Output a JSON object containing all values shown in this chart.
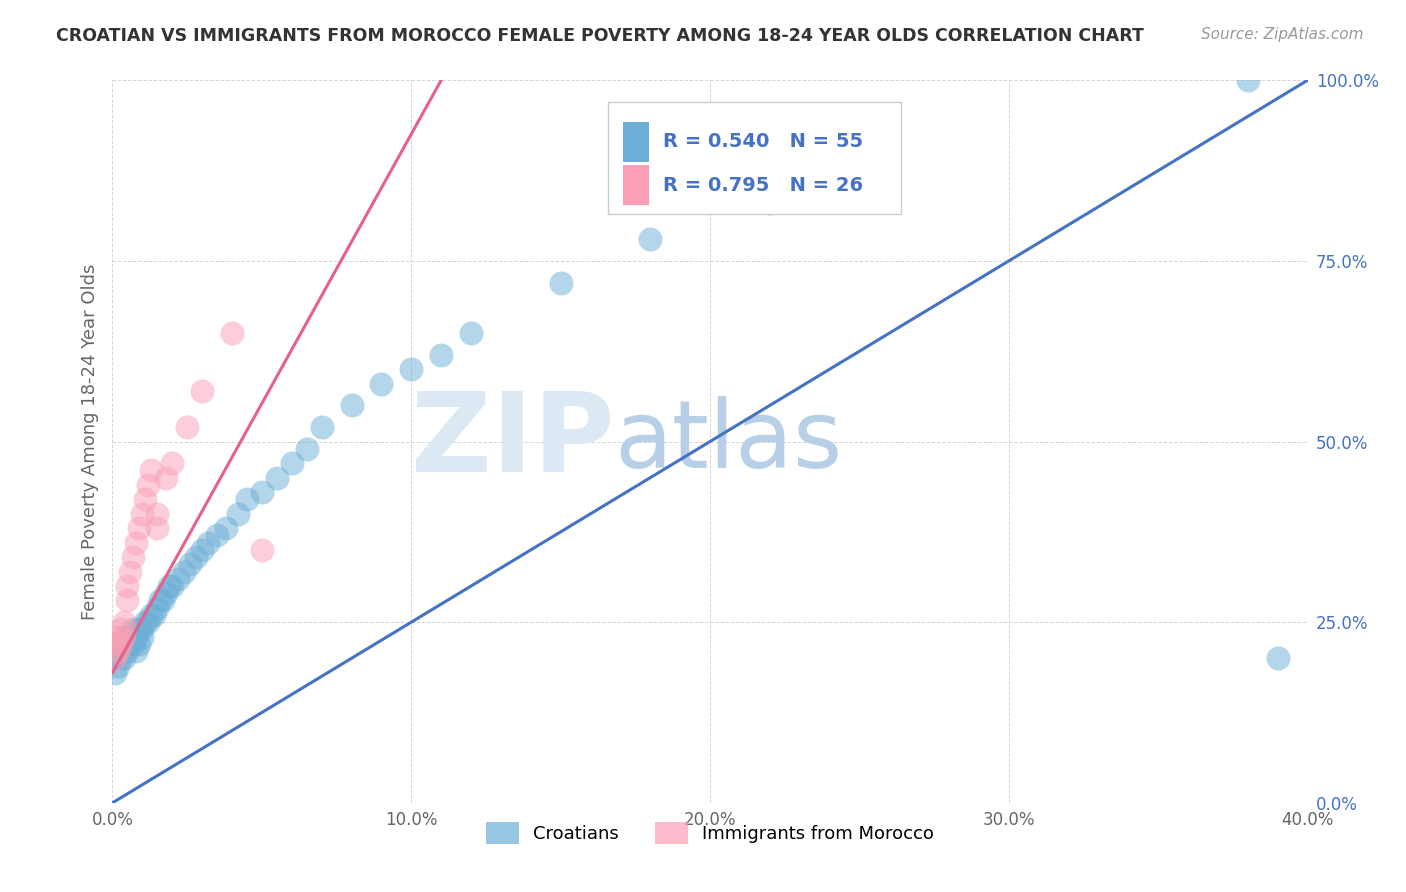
{
  "title": "CROATIAN VS IMMIGRANTS FROM MOROCCO FEMALE POVERTY AMONG 18-24 YEAR OLDS CORRELATION CHART",
  "source": "Source: ZipAtlas.com",
  "ylabel": "Female Poverty Among 18-24 Year Olds",
  "xlim": [
    0.0,
    0.4
  ],
  "ylim": [
    0.0,
    1.0
  ],
  "xticks": [
    0.0,
    0.1,
    0.2,
    0.3,
    0.4
  ],
  "yticks": [
    0.0,
    0.25,
    0.5,
    0.75,
    1.0
  ],
  "xticklabels": [
    "0.0%",
    "10.0%",
    "20.0%",
    "30.0%",
    "40.0%"
  ],
  "yticklabels": [
    "0.0%",
    "25.0%",
    "50.0%",
    "75.0%",
    "100.0%"
  ],
  "croatians_color": "#6baed6",
  "morocco_color": "#fa9fb5",
  "line_blue": "#4472c4",
  "line_pink": "#e8608a",
  "tick_color": "#4472c4",
  "watermark_zip_color": "#dce8f4",
  "watermark_atlas_color": "#b8cfe8",
  "legend_text_color": "#4472c4",
  "legend_r1": "R = 0.540",
  "legend_n1": "N = 55",
  "legend_r2": "R = 0.795",
  "legend_n2": "N = 26",
  "legend_label1": "Croatians",
  "legend_label2": "Immigrants from Morocco",
  "blue_line_x": [
    0.0,
    0.4
  ],
  "blue_line_y": [
    0.0,
    1.0
  ],
  "pink_line_x": [
    0.0,
    0.11
  ],
  "pink_line_y": [
    0.18,
    1.0
  ],
  "croatians_x": [
    0.001,
    0.001,
    0.002,
    0.002,
    0.003,
    0.003,
    0.004,
    0.004,
    0.005,
    0.005,
    0.006,
    0.006,
    0.007,
    0.007,
    0.008,
    0.008,
    0.009,
    0.009,
    0.01,
    0.01,
    0.011,
    0.012,
    0.013,
    0.014,
    0.015,
    0.016,
    0.017,
    0.018,
    0.019,
    0.02,
    0.022,
    0.024,
    0.026,
    0.028,
    0.03,
    0.032,
    0.035,
    0.038,
    0.042,
    0.045,
    0.05,
    0.055,
    0.06,
    0.065,
    0.07,
    0.08,
    0.09,
    0.1,
    0.11,
    0.12,
    0.15,
    0.18,
    0.22,
    0.38,
    0.39
  ],
  "croatians_y": [
    0.18,
    0.2,
    0.19,
    0.21,
    0.2,
    0.22,
    0.2,
    0.23,
    0.21,
    0.22,
    0.22,
    0.23,
    0.22,
    0.24,
    0.21,
    0.23,
    0.22,
    0.24,
    0.23,
    0.24,
    0.25,
    0.25,
    0.26,
    0.26,
    0.27,
    0.28,
    0.28,
    0.29,
    0.3,
    0.3,
    0.31,
    0.32,
    0.33,
    0.34,
    0.35,
    0.36,
    0.37,
    0.38,
    0.4,
    0.42,
    0.43,
    0.45,
    0.47,
    0.49,
    0.52,
    0.55,
    0.58,
    0.6,
    0.62,
    0.65,
    0.72,
    0.78,
    0.83,
    1.0,
    0.2
  ],
  "morocco_x": [
    0.001,
    0.001,
    0.002,
    0.002,
    0.003,
    0.003,
    0.004,
    0.004,
    0.005,
    0.005,
    0.006,
    0.007,
    0.008,
    0.009,
    0.01,
    0.011,
    0.012,
    0.013,
    0.015,
    0.015,
    0.018,
    0.02,
    0.025,
    0.03,
    0.04,
    0.05
  ],
  "morocco_y": [
    0.2,
    0.22,
    0.21,
    0.23,
    0.22,
    0.24,
    0.23,
    0.25,
    0.28,
    0.3,
    0.32,
    0.34,
    0.36,
    0.38,
    0.4,
    0.42,
    0.44,
    0.46,
    0.38,
    0.4,
    0.45,
    0.47,
    0.52,
    0.57,
    0.65,
    0.35
  ]
}
